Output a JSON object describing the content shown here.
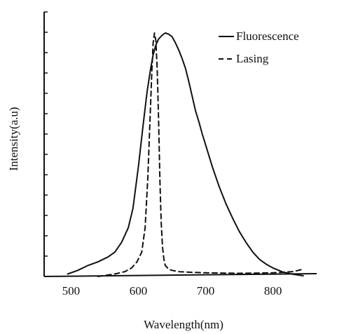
{
  "chart_data": {
    "type": "line",
    "title": "",
    "xlabel": "Wavelength(nm)",
    "ylabel": "Intensity(a.u)",
    "xlim": [
      460,
      865
    ],
    "ylim": [
      0,
      1.0
    ],
    "x_ticks": [
      500,
      600,
      700,
      800
    ],
    "x_tick_labels": [
      "500",
      "600",
      "700",
      "800"
    ],
    "y_tick_count": 13,
    "y_tick_labels_shown": false,
    "grid": false,
    "legend_position": "top-right",
    "series": [
      {
        "name": "Fluorescence",
        "style": "solid",
        "color": "#111111",
        "x": [
          495,
          510,
          525,
          540,
          555,
          565,
          575,
          585,
          592,
          600,
          607,
          613,
          618,
          622,
          626,
          630,
          635,
          640,
          645,
          650,
          655,
          660,
          665,
          670,
          675,
          680,
          685,
          690,
          695,
          700,
          710,
          720,
          730,
          740,
          750,
          760,
          770,
          780,
          790,
          800,
          815,
          830,
          845
        ],
        "y": [
          0.01,
          0.025,
          0.045,
          0.06,
          0.08,
          0.1,
          0.14,
          0.2,
          0.28,
          0.45,
          0.62,
          0.76,
          0.85,
          0.91,
          0.95,
          0.975,
          0.99,
          1.0,
          0.995,
          0.985,
          0.96,
          0.93,
          0.895,
          0.855,
          0.8,
          0.74,
          0.68,
          0.635,
          0.585,
          0.54,
          0.45,
          0.37,
          0.3,
          0.24,
          0.185,
          0.14,
          0.1,
          0.07,
          0.05,
          0.035,
          0.018,
          0.009,
          0.003
        ]
      },
      {
        "name": "Lasing",
        "style": "dashed",
        "color": "#111111",
        "x": [
          540,
          565,
          580,
          590,
          598,
          605,
          610,
          614,
          617,
          620,
          622,
          624,
          626,
          628,
          630,
          632,
          634,
          636,
          638,
          640,
          645,
          650,
          660,
          680,
          700,
          750,
          800,
          830,
          845
        ],
        "y": [
          0.0,
          0.01,
          0.02,
          0.035,
          0.06,
          0.1,
          0.2,
          0.4,
          0.62,
          0.84,
          0.96,
          1.0,
          0.97,
          0.85,
          0.65,
          0.4,
          0.22,
          0.12,
          0.07,
          0.045,
          0.03,
          0.025,
          0.02,
          0.017,
          0.015,
          0.013,
          0.015,
          0.02,
          0.03
        ]
      }
    ]
  }
}
